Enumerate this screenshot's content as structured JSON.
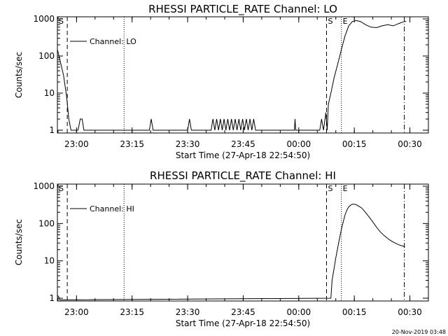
{
  "chart_data": [
    {
      "type": "line",
      "title": "RHESSI PARTICLE_RATE Channel: LO",
      "xlabel": "Start Time (27-Apr-18 22:54:50)",
      "ylabel": "Counts/sec",
      "y_scale": "log",
      "ylim": [
        1,
        1000
      ],
      "xlim": [
        "22:54:50",
        "00:35:00"
      ],
      "x_ticks": [
        "23:00",
        "23:15",
        "23:30",
        "23:45",
        "00:00",
        "00:15",
        "00:30"
      ],
      "y_ticks": [
        "1",
        "10",
        "100",
        "1000"
      ],
      "grid": false,
      "legend": {
        "position": "top-left",
        "entries": [
          "Channel: LO"
        ]
      },
      "series": [
        {
          "name": "Channel: LO",
          "x": [
            "22:54:50",
            "22:55:30",
            "22:56:30",
            "22:57:20",
            "22:57:55",
            "22:58:30",
            "22:59:10",
            "22:59:50",
            "23:00:25",
            "23:01:00",
            "23:01:30",
            "23:02:00",
            "23:19:40",
            "23:20:10",
            "23:20:40",
            "23:30:00",
            "23:30:30",
            "23:31:00",
            "23:36:20",
            "23:36:50",
            "23:37:20",
            "23:37:50",
            "23:38:20",
            "23:38:50",
            "23:39:20",
            "23:39:50",
            "23:40:20",
            "23:40:50",
            "23:41:20",
            "23:41:50",
            "23:42:20",
            "23:42:50",
            "23:43:20",
            "23:43:50",
            "23:44:20",
            "23:44:50",
            "23:45:20",
            "23:45:50",
            "23:46:20",
            "23:46:50",
            "23:47:20",
            "23:47:50",
            "23:48:20",
            "23:58:50",
            "23:59:00",
            "23:59:10",
            "00:05:40",
            "00:06:10",
            "00:06:40",
            "00:07:20",
            "00:07:40",
            "00:08:00",
            "00:08:40",
            "00:09:30",
            "00:10:30",
            "00:11:30",
            "00:12:30",
            "00:13:30",
            "00:14:30",
            "00:15:30",
            "00:16:40",
            "00:18:00",
            "00:19:30",
            "00:21:00",
            "00:22:30",
            "00:24:00",
            "00:25:30",
            "00:27:00",
            "00:28:30",
            "00:29:00"
          ],
          "y": [
            150,
            80,
            30,
            8,
            2,
            1,
            1,
            1,
            1,
            2,
            2,
            1,
            1,
            2,
            1,
            1,
            2,
            1,
            1,
            2,
            1,
            2,
            1,
            2,
            1,
            2,
            1,
            2,
            1,
            2,
            1,
            2,
            1,
            2,
            1,
            2,
            1,
            2,
            1,
            2,
            1,
            2,
            1,
            1,
            2,
            1,
            1,
            2,
            1,
            3,
            1,
            5,
            10,
            25,
            60,
            150,
            350,
            650,
            850,
            900,
            850,
            700,
            600,
            580,
            650,
            700,
            650,
            750,
            850,
            850
          ]
        }
      ],
      "markers": [
        {
          "label": "S",
          "time": "22:54:50",
          "style": "dashed"
        },
        {
          "label": "",
          "time": "22:57:30",
          "style": "dashed"
        },
        {
          "label": "",
          "time": "23:12:50",
          "style": "dotted"
        },
        {
          "label": "S",
          "time": "00:07:30",
          "style": "dashed"
        },
        {
          "label": "E",
          "time": "00:11:30",
          "style": "dotted"
        },
        {
          "label": "",
          "time": "00:28:30",
          "style": "dash-dot"
        }
      ]
    },
    {
      "type": "line",
      "title": "RHESSI PARTICLE_RATE Channel: HI",
      "xlabel": "Start Time (27-Apr-18 22:54:50)",
      "ylabel": "Counts/sec",
      "y_scale": "log",
      "ylim": [
        1,
        1000
      ],
      "xlim": [
        "22:54:50",
        "00:35:00"
      ],
      "x_ticks": [
        "23:00",
        "23:15",
        "23:30",
        "23:45",
        "00:00",
        "00:15",
        "00:30"
      ],
      "y_ticks": [
        "1",
        "10",
        "100",
        "1000"
      ],
      "grid": false,
      "legend": {
        "position": "top-left",
        "entries": [
          "Channel: HI"
        ]
      },
      "series": [
        {
          "name": "Channel: HI",
          "x": [
            "22:54:50",
            "22:55:10",
            "22:55:30",
            "00:08:40",
            "00:09:00",
            "00:09:30",
            "00:10:00",
            "00:10:30",
            "00:11:00",
            "00:11:30",
            "00:12:00",
            "00:12:30",
            "00:13:00",
            "00:13:30",
            "00:14:00",
            "00:14:30",
            "00:15:00",
            "00:15:30",
            "00:16:00",
            "00:17:00",
            "00:18:00",
            "00:19:00",
            "00:20:00",
            "00:21:00",
            "00:22:00",
            "00:23:00",
            "00:24:00",
            "00:25:00",
            "00:26:00",
            "00:27:00",
            "00:28:00",
            "00:28:40"
          ],
          "y": [
            1.2,
            1.1,
            0.9,
            1,
            3,
            6,
            12,
            22,
            40,
            70,
            110,
            170,
            230,
            280,
            310,
            330,
            330,
            320,
            300,
            260,
            200,
            150,
            110,
            80,
            60,
            48,
            40,
            34,
            30,
            27,
            25,
            24
          ]
        }
      ],
      "markers": [
        {
          "label": "S",
          "time": "22:54:50",
          "style": "dashed"
        },
        {
          "label": "",
          "time": "22:57:30",
          "style": "dashed"
        },
        {
          "label": "",
          "time": "23:12:50",
          "style": "dotted"
        },
        {
          "label": "S",
          "time": "00:07:30",
          "style": "dashed"
        },
        {
          "label": "E",
          "time": "00:11:30",
          "style": "dotted"
        },
        {
          "label": "",
          "time": "00:28:30",
          "style": "dash-dot"
        }
      ]
    }
  ],
  "footer": {
    "stamp": "20-Nov-2019 03:48"
  }
}
